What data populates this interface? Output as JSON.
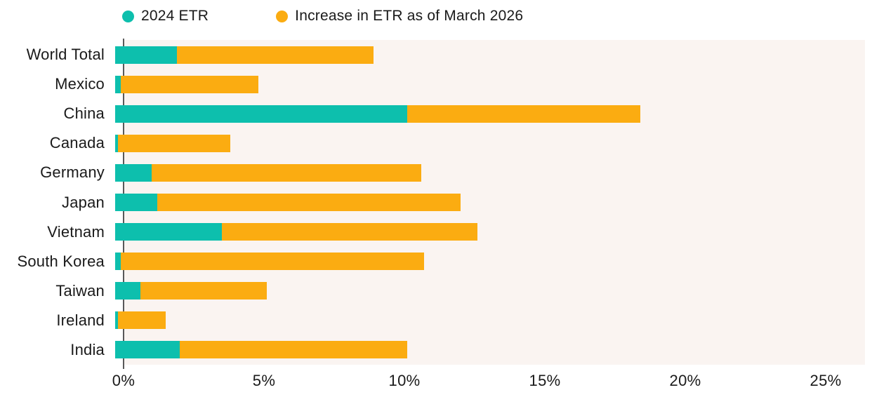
{
  "colors": {
    "series_2024_etr": "#0dbfad",
    "series_increase": "#fbac11",
    "plot_background": "#faf4f1",
    "axis_line": "#595959",
    "text": "#1a1a1a"
  },
  "chart_data": {
    "type": "bar",
    "orientation": "horizontal",
    "stacked": true,
    "title": "",
    "xlabel": "",
    "ylabel": "",
    "xlim": [
      0,
      26.4
    ],
    "grid": false,
    "legend_position": "top",
    "categories": [
      "World Total",
      "Mexico",
      "China",
      "Canada",
      "Germany",
      "Japan",
      "Vietnam",
      "South Korea",
      "Taiwan",
      "Ireland",
      "India"
    ],
    "series": [
      {
        "name": "2024 ETR",
        "color": "#0dbfad",
        "values": [
          2.2,
          0.2,
          10.4,
          0.1,
          1.3,
          1.5,
          3.8,
          0.2,
          0.9,
          0.1,
          2.3
        ]
      },
      {
        "name": "Increase in ETR as of March 2026",
        "color": "#fbac11",
        "values": [
          7.0,
          4.9,
          8.3,
          4.0,
          9.6,
          10.8,
          9.1,
          10.8,
          4.5,
          1.7,
          8.1
        ]
      }
    ],
    "x_axis": {
      "tick_labels": [
        "0%",
        "5%",
        "10%",
        "15%",
        "20%",
        "25%"
      ],
      "tick_values": [
        0,
        5,
        10,
        15,
        20,
        25
      ]
    }
  }
}
